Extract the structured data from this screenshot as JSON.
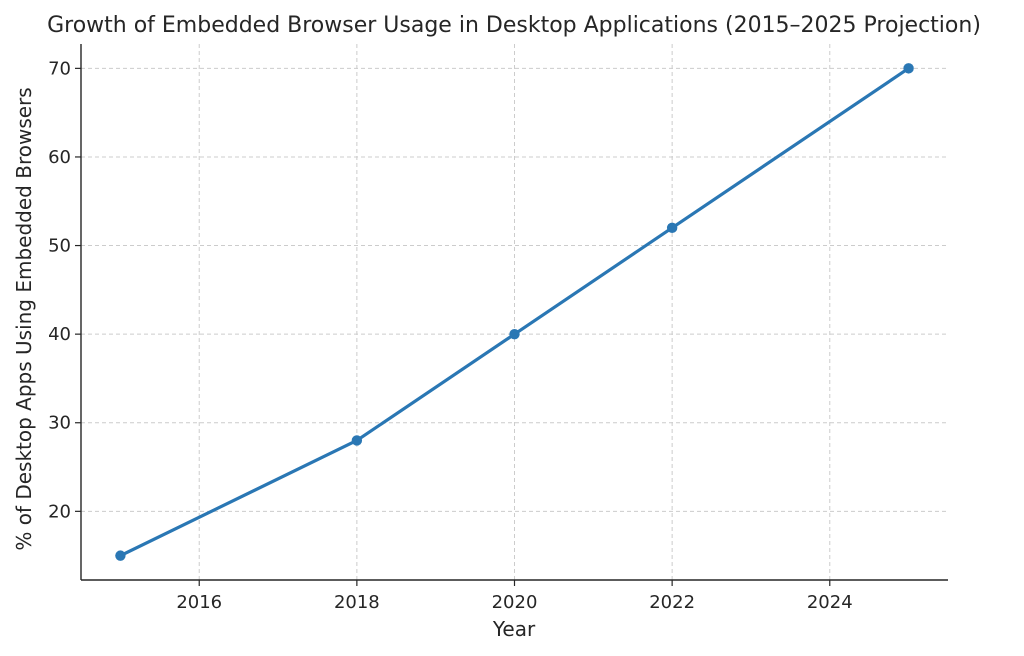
{
  "chart_data": {
    "type": "line",
    "title": "Growth of Embedded Browser Usage in Desktop Applications (2015–2025 Projection)",
    "xlabel": "Year",
    "ylabel": "% of Desktop Apps Using Embedded Browsers",
    "xlim": [
      2014.5,
      2025.5
    ],
    "ylim": [
      12.25,
      72.75
    ],
    "xticks": [
      2016,
      2018,
      2020,
      2022,
      2024
    ],
    "yticks": [
      20,
      30,
      40,
      50,
      60,
      70
    ],
    "grid": true,
    "series": [
      {
        "x": [
          2015,
          2018,
          2020,
          2022,
          2025
        ],
        "y": [
          15,
          28,
          40,
          52,
          70
        ],
        "color": "#2a77b4",
        "marker": "circle"
      }
    ]
  }
}
